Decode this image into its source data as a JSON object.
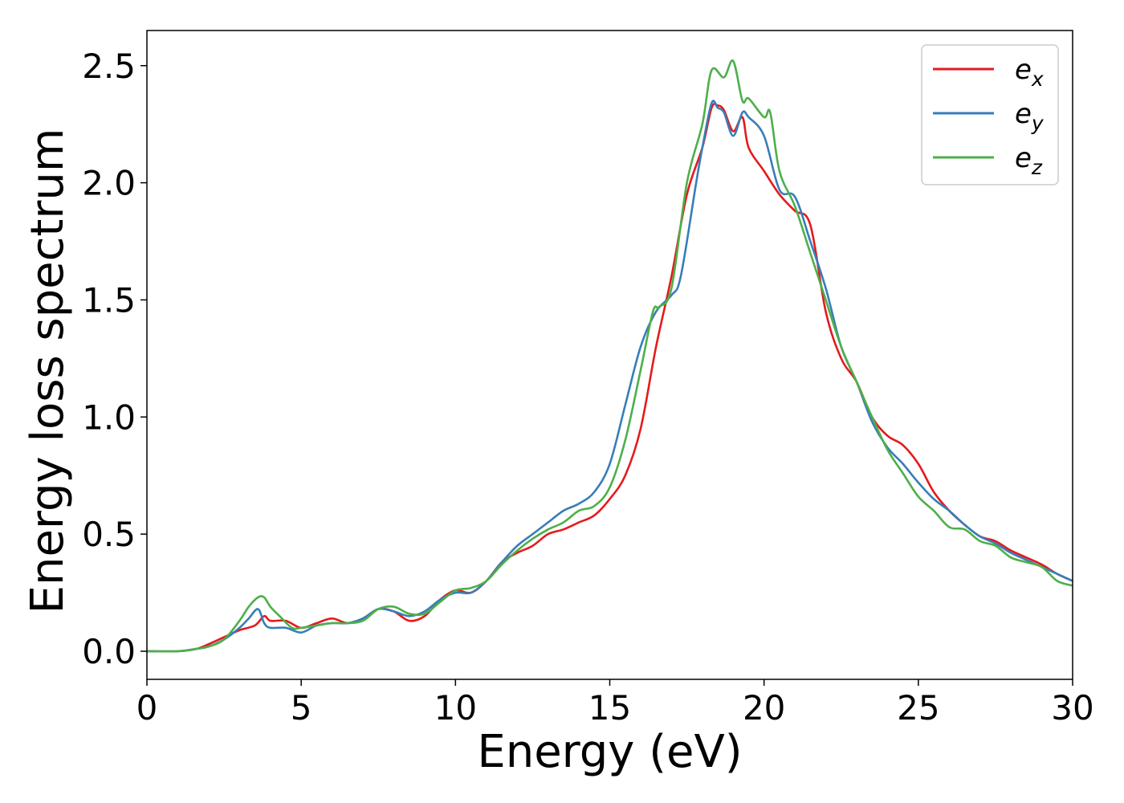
{
  "chart_data": {
    "type": "line",
    "title": "",
    "xlabel": "Energy (eV)",
    "ylabel": "Energy loss spectrum",
    "xlim": [
      0,
      30
    ],
    "ylim": [
      -0.12,
      2.65
    ],
    "xticks": [
      0,
      5,
      10,
      15,
      20,
      25,
      30
    ],
    "xtick_labels": [
      "0",
      "5",
      "10",
      "15",
      "20",
      "25",
      "30"
    ],
    "yticks": [
      0.0,
      0.5,
      1.0,
      1.5,
      2.0,
      2.5
    ],
    "ytick_labels": [
      "0.0",
      "0.5",
      "1.0",
      "1.5",
      "2.0",
      "2.5"
    ],
    "grid": false,
    "legend_position": "top-right",
    "series": [
      {
        "name": "e_x",
        "legend_base": "e",
        "legend_sub": "x",
        "color": "#e41a1c",
        "x": [
          0,
          1,
          1.6,
          2,
          2.5,
          3,
          3.5,
          3.8,
          4,
          4.5,
          5,
          5.5,
          6,
          6.5,
          7,
          7.5,
          8,
          8.5,
          9,
          9.5,
          10,
          10.5,
          11,
          11.5,
          12,
          12.5,
          13,
          13.5,
          14,
          14.5,
          15,
          15.5,
          16,
          16.5,
          17,
          17.5,
          18,
          18.3,
          18.5,
          18.7,
          19,
          19.3,
          19.5,
          20,
          20.5,
          21,
          21.5,
          22,
          22.5,
          23,
          23.5,
          24,
          24.5,
          25,
          25.5,
          26,
          26.5,
          27,
          27.5,
          28,
          28.5,
          29,
          29.5,
          30
        ],
        "y": [
          0,
          0,
          0.01,
          0.03,
          0.06,
          0.09,
          0.11,
          0.15,
          0.13,
          0.13,
          0.1,
          0.12,
          0.14,
          0.12,
          0.14,
          0.18,
          0.17,
          0.13,
          0.15,
          0.22,
          0.26,
          0.25,
          0.3,
          0.38,
          0.42,
          0.45,
          0.5,
          0.52,
          0.55,
          0.58,
          0.65,
          0.75,
          0.95,
          1.3,
          1.6,
          1.95,
          2.15,
          2.32,
          2.33,
          2.31,
          2.22,
          2.28,
          2.15,
          2.05,
          1.95,
          1.88,
          1.82,
          1.45,
          1.25,
          1.15,
          1.0,
          0.92,
          0.88,
          0.8,
          0.68,
          0.6,
          0.54,
          0.49,
          0.47,
          0.43,
          0.4,
          0.37,
          0.33,
          0.3
        ]
      },
      {
        "name": "e_y",
        "legend_base": "e",
        "legend_sub": "y",
        "color": "#377eb8",
        "x": [
          0,
          1,
          1.6,
          2,
          2.5,
          3,
          3.3,
          3.6,
          3.8,
          4,
          4.5,
          5,
          5.5,
          6,
          6.5,
          7,
          7.5,
          8,
          8.5,
          9,
          9.5,
          10,
          10.5,
          11,
          11.5,
          12,
          12.5,
          13,
          13.5,
          14,
          14.5,
          15,
          15.5,
          16,
          16.5,
          17,
          17.3,
          17.8,
          18,
          18.3,
          18.5,
          18.7,
          19,
          19.3,
          19.5,
          20,
          20.5,
          21,
          21.5,
          22,
          22.5,
          23,
          23.5,
          24,
          24.5,
          25,
          25.5,
          26,
          26.5,
          27,
          27.5,
          28,
          28.5,
          29,
          29.5,
          30
        ],
        "y": [
          0,
          0,
          0.01,
          0.02,
          0.05,
          0.1,
          0.14,
          0.18,
          0.12,
          0.1,
          0.1,
          0.08,
          0.11,
          0.12,
          0.12,
          0.14,
          0.18,
          0.17,
          0.15,
          0.17,
          0.22,
          0.25,
          0.25,
          0.3,
          0.38,
          0.45,
          0.5,
          0.55,
          0.6,
          0.63,
          0.68,
          0.8,
          1.05,
          1.3,
          1.45,
          1.52,
          1.6,
          2.0,
          2.15,
          2.34,
          2.32,
          2.3,
          2.2,
          2.3,
          2.28,
          2.2,
          1.97,
          1.94,
          1.75,
          1.55,
          1.3,
          1.15,
          0.98,
          0.87,
          0.8,
          0.72,
          0.65,
          0.6,
          0.54,
          0.49,
          0.46,
          0.42,
          0.39,
          0.36,
          0.33,
          0.3
        ]
      },
      {
        "name": "e_z",
        "legend_base": "e",
        "legend_sub": "z",
        "color": "#4daf4a",
        "x": [
          0,
          1,
          1.6,
          2,
          2.5,
          3,
          3.3,
          3.6,
          3.8,
          4,
          4.3,
          4.7,
          5,
          5.5,
          6,
          6.5,
          7,
          7.5,
          8,
          8.5,
          9,
          9.5,
          10,
          10.5,
          11,
          11.5,
          12,
          12.5,
          13,
          13.5,
          14,
          14.5,
          15,
          15.5,
          16,
          16.4,
          16.6,
          17,
          17.5,
          18,
          18.3,
          18.7,
          19,
          19.3,
          19.5,
          20,
          20.2,
          20.5,
          21,
          21.5,
          22,
          22.5,
          23,
          23.5,
          24,
          24.5,
          25,
          25.5,
          26,
          26.5,
          27,
          27.5,
          28,
          28.5,
          29,
          29.5,
          30
        ],
        "y": [
          0,
          0,
          0.01,
          0.02,
          0.05,
          0.13,
          0.19,
          0.23,
          0.23,
          0.19,
          0.15,
          0.1,
          0.1,
          0.11,
          0.12,
          0.12,
          0.13,
          0.18,
          0.19,
          0.16,
          0.16,
          0.21,
          0.26,
          0.27,
          0.3,
          0.37,
          0.43,
          0.48,
          0.52,
          0.55,
          0.6,
          0.62,
          0.7,
          0.9,
          1.2,
          1.45,
          1.47,
          1.55,
          2.0,
          2.25,
          2.48,
          2.45,
          2.52,
          2.35,
          2.36,
          2.28,
          2.3,
          2.05,
          1.9,
          1.7,
          1.5,
          1.3,
          1.15,
          1.0,
          0.86,
          0.76,
          0.66,
          0.6,
          0.53,
          0.52,
          0.47,
          0.45,
          0.4,
          0.38,
          0.36,
          0.3,
          0.28
        ]
      }
    ]
  }
}
